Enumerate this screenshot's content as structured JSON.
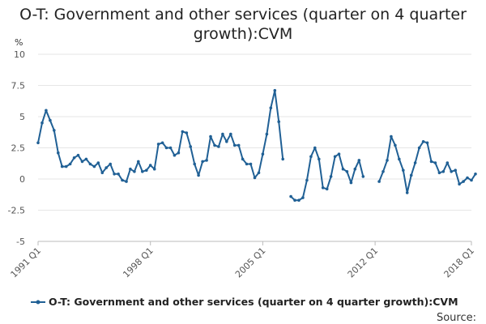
{
  "chart_data": {
    "type": "line",
    "title": "O-T: Government and other services (quarter on 4 quarter growth):CVM",
    "ylabel": "%",
    "ylim": [
      -5,
      10
    ],
    "yticks": [
      10,
      7.5,
      5,
      2.5,
      0,
      -2.5,
      -5
    ],
    "ytick_labels": [
      "10",
      "7.5",
      "5",
      "2.5",
      "0",
      "-2.5",
      "-5"
    ],
    "xlim": [
      1991,
      2018
    ],
    "xticks": [
      1991,
      1998,
      2005,
      2012,
      2018
    ],
    "xtick_labels": [
      "1991 Q1",
      "1998 Q1",
      "2005 Q1",
      "2012 Q1",
      "2018 Q1"
    ],
    "legend": "bottom",
    "source_label": "Source:",
    "color": "#206095",
    "series": [
      {
        "name": "O-T: Government and other services (quarter on 4 quarter growth):CVM",
        "segments": [
          {
            "start": 1991,
            "values": [
              2.9,
              4.5,
              5.5,
              4.7,
              3.9,
              2.1,
              1.0,
              1.0,
              1.2,
              1.7,
              1.9,
              1.4,
              1.6,
              1.2,
              1.0,
              1.3,
              0.5,
              0.9,
              1.2,
              0.4,
              0.4,
              -0.1,
              -0.2,
              0.8,
              0.6,
              1.4,
              0.6,
              0.7,
              1.1,
              0.8,
              2.8,
              2.9,
              2.5,
              2.5,
              1.9,
              2.1,
              3.8,
              3.7,
              2.6,
              1.2,
              0.3,
              1.4,
              1.5,
              3.4,
              2.7,
              2.6,
              3.6,
              3.0,
              3.6,
              2.7,
              2.7,
              1.6,
              1.2,
              1.2,
              0.1,
              0.5,
              2.0,
              3.6,
              5.7,
              7.1,
              4.6,
              1.6
            ]
          },
          {
            "start": 2006.75,
            "values": [
              -1.4,
              -1.7,
              -1.7,
              -1.5,
              -0.1,
              1.8,
              2.5,
              1.6,
              -0.7,
              -0.8,
              0.2,
              1.8,
              2.0,
              0.8,
              0.6,
              -0.3,
              0.8,
              1.5,
              0.2
            ]
          },
          {
            "start": 2012.25,
            "values": [
              -0.2,
              0.6,
              1.5,
              3.4,
              2.7,
              1.6,
              0.7,
              -1.1,
              0.3,
              1.3,
              2.5,
              3.0,
              2.9,
              1.4,
              1.3,
              0.5,
              0.6,
              1.3,
              0.6,
              0.7,
              -0.4,
              -0.2,
              0.1,
              -0.1,
              0.4
            ]
          }
        ]
      }
    ]
  }
}
